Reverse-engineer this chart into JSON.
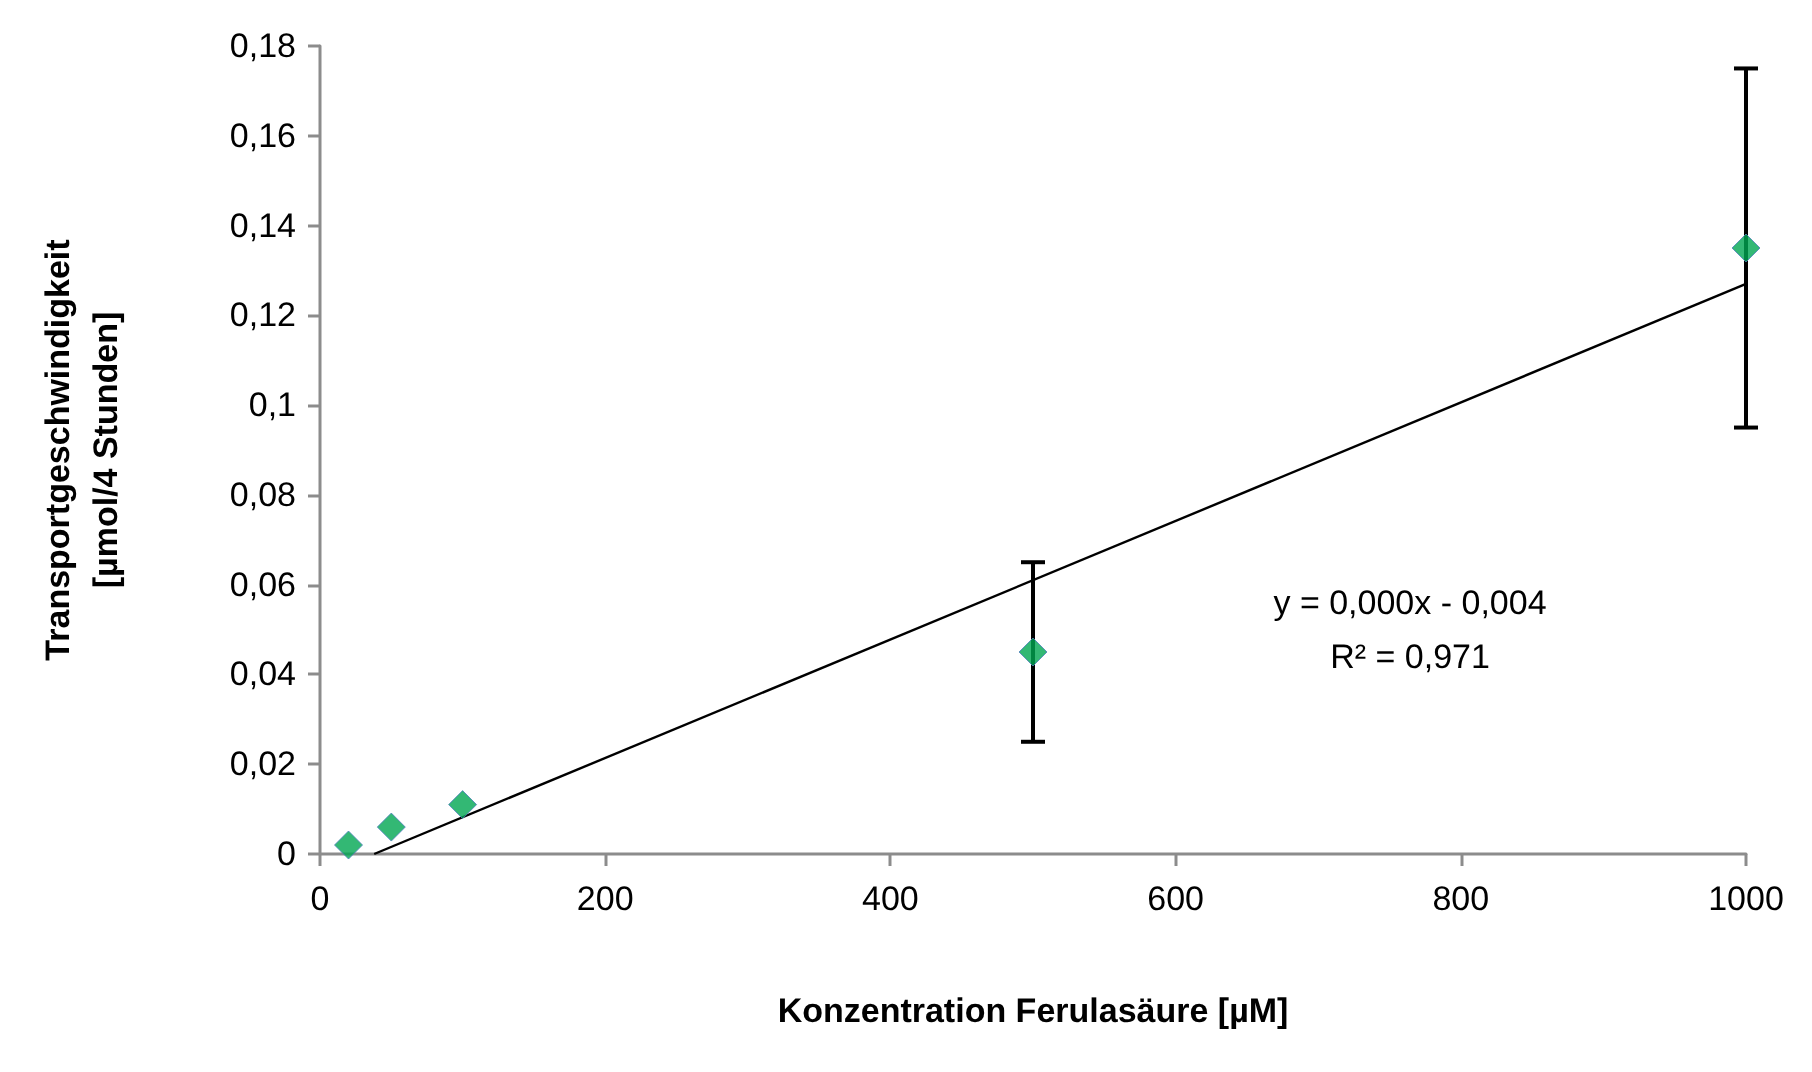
{
  "chart_data": {
    "type": "scatter",
    "xlabel": "Konzentration Ferulasäure [µM]",
    "ylabel": "Transportgeschwindigkeit\n[µmol/4 Stunden]",
    "annotations": [
      "y = 0,000x - 0,004",
      "R² = 0,971"
    ],
    "series": [
      {
        "color": "#00a651",
        "marker": "diamond",
        "x": [
          20,
          50,
          100,
          500,
          1000
        ],
        "values": [
          0.002,
          0.006,
          0.011,
          0.045,
          0.135
        ],
        "errors": [
          null,
          null,
          null,
          0.02,
          0.04
        ]
      },
      {
        "type": "line",
        "color": "#000000",
        "marker": "none",
        "x": [
          38,
          1000
        ],
        "values": [
          0,
          0.127
        ]
      }
    ],
    "xlim": [
      0,
      1000
    ],
    "xticks": [
      0,
      200,
      400,
      600,
      800,
      1000
    ],
    "ylim": [
      0,
      0.18
    ],
    "yticks": [
      0,
      {
        "value": 0.02,
        "label": "0,02"
      },
      {
        "value": 0.04,
        "label": "0,04"
      },
      {
        "value": 0.06,
        "label": "0,06"
      },
      {
        "value": 0.08,
        "label": "0,08"
      },
      {
        "value": 0.1,
        "label": "0,1"
      },
      {
        "value": 0.12,
        "label": "0,12"
      },
      {
        "value": 0.14,
        "label": "0,14"
      },
      {
        "value": 0.16,
        "label": "0,16"
      },
      {
        "value": 0.18,
        "label": "0,18"
      }
    ]
  }
}
